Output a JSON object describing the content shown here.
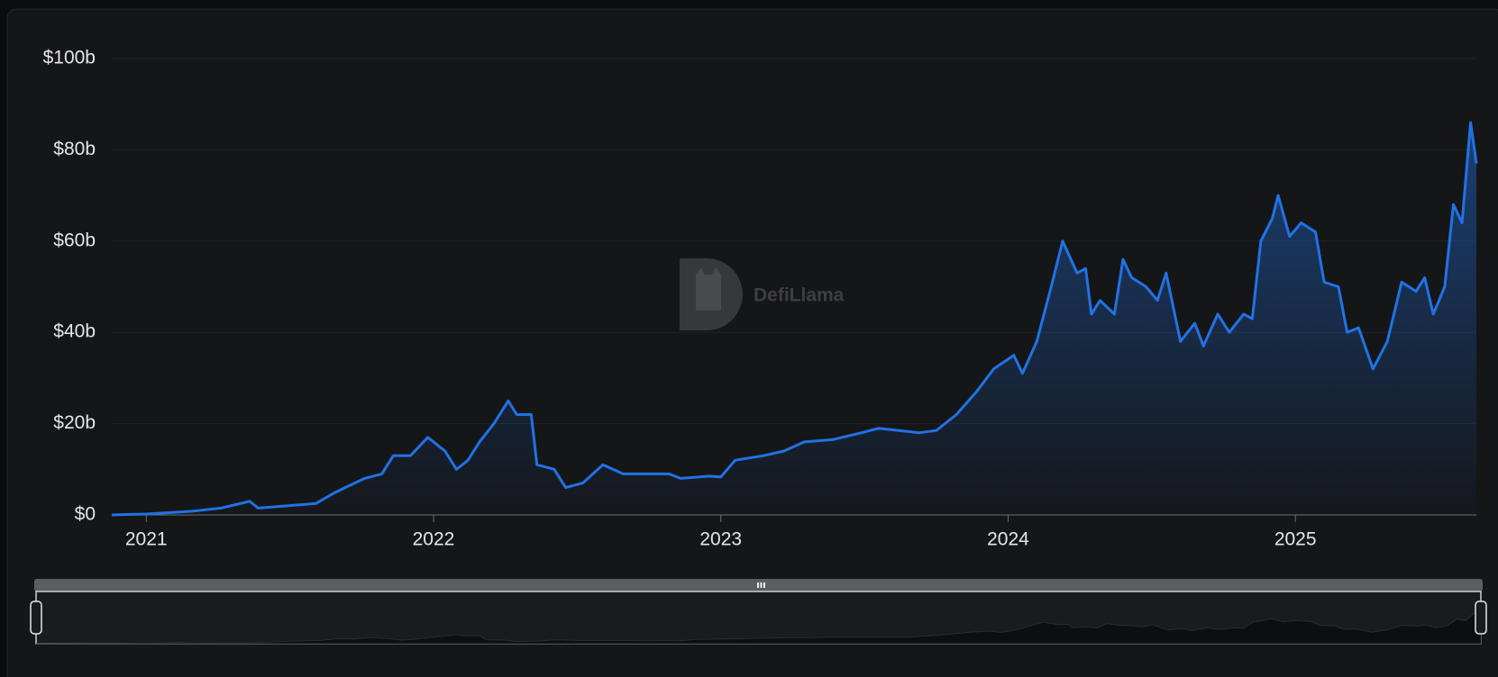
{
  "chart_data": {
    "type": "area",
    "watermark": "DefiLlama",
    "color": "#2172e5",
    "grid": true,
    "xlim": [
      2020.88,
      2025.63
    ],
    "xticks": [
      2021,
      2022,
      2023,
      2024,
      2025
    ],
    "ylim": [
      0,
      100
    ],
    "yticks": [
      {
        "value": 0,
        "label": "$0"
      },
      {
        "value": 20,
        "label": "$20b"
      },
      {
        "value": 40,
        "label": "$40b"
      },
      {
        "value": 60,
        "label": "$60b"
      },
      {
        "value": 80,
        "label": "$80b"
      },
      {
        "value": 100,
        "label": "$100b"
      }
    ],
    "x": [
      2020.88,
      2021.0,
      2021.16,
      2021.26,
      2021.36,
      2021.39,
      2021.49,
      2021.59,
      2021.66,
      2021.76,
      2021.82,
      2021.86,
      2021.92,
      2021.98,
      2022.04,
      2022.08,
      2022.12,
      2022.16,
      2022.21,
      2022.26,
      2022.29,
      2022.34,
      2022.36,
      2022.42,
      2022.46,
      2022.52,
      2022.59,
      2022.66,
      2022.76,
      2022.82,
      2022.86,
      2022.96,
      2023.0,
      2023.05,
      2023.15,
      2023.22,
      2023.29,
      2023.39,
      2023.49,
      2023.55,
      2023.69,
      2023.75,
      2023.82,
      2023.89,
      2023.95,
      2024.02,
      2024.05,
      2024.1,
      2024.15,
      2024.19,
      2024.24,
      2024.27,
      2024.29,
      2024.32,
      2024.37,
      2024.4,
      2024.43,
      2024.48,
      2024.52,
      2024.55,
      2024.6,
      2024.65,
      2024.68,
      2024.73,
      2024.77,
      2024.82,
      2024.85,
      2024.88,
      2024.92,
      2024.94,
      2024.98,
      2025.02,
      2025.07,
      2025.1,
      2025.15,
      2025.18,
      2025.22,
      2025.27,
      2025.32,
      2025.37,
      2025.42,
      2025.45,
      2025.48,
      2025.52,
      2025.55,
      2025.58,
      2025.61,
      2025.63
    ],
    "values": [
      0,
      0.2,
      0.8,
      1.5,
      3,
      1.5,
      2,
      2.5,
      5,
      8,
      9,
      13,
      13,
      17,
      14,
      10,
      12,
      16,
      20,
      25,
      22,
      22,
      11,
      10,
      6,
      7,
      11,
      9,
      9,
      9,
      8,
      8.5,
      8.3,
      12,
      13,
      14,
      16,
      16.5,
      18,
      19,
      18,
      18.5,
      22,
      27,
      32,
      35,
      31,
      38,
      50,
      60,
      53,
      54,
      44,
      47,
      44,
      56,
      52,
      50,
      47,
      53,
      38,
      42,
      37,
      44,
      40,
      44,
      43,
      60,
      65,
      70,
      61,
      64,
      62,
      51,
      50,
      40,
      41,
      32,
      38,
      51,
      49,
      52,
      44,
      50,
      68,
      64,
      86,
      77
    ]
  }
}
